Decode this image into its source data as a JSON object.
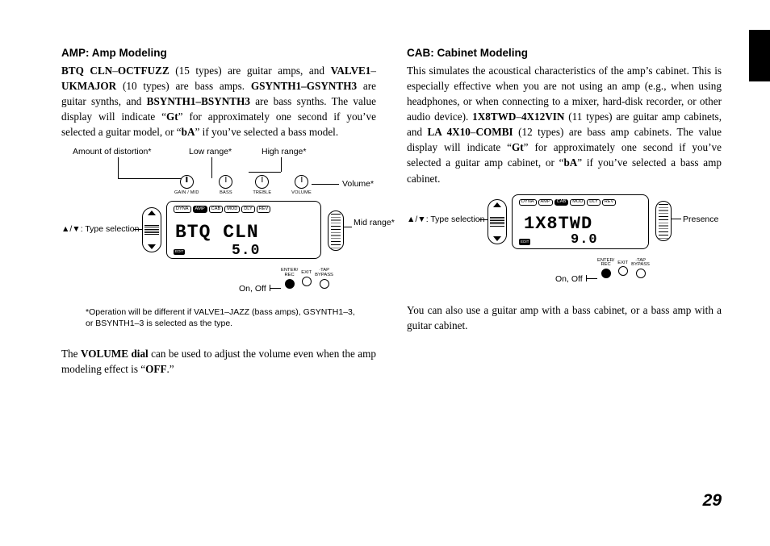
{
  "page_number": "29",
  "amp": {
    "heading": "AMP: Amp Modeling",
    "body_html": "<span class='bold'>BTQ CLN</span>–<span class='bold'>OCTFUZZ</span> (15 types) are guitar amps, and <span class='bold'>VALVE1</span>–<span class='bold'>UKMAJOR</span> (10 types) are bass amps. <span class='bold'>GSYNTH1–GSYNTH3</span> are guitar synths, and <span class='bold'>BSYNTH1–BSYNTH3</span> are bass synths. The value display will indicate “<span class='bold'>Gt</span>” for approximately one second if you’ve selected a guitar model, or “<span class='bold'>bA</span>” if you’ve selected a bass model.",
    "volume_note_html": "The <span class='bold'>VOLUME dial</span> can be used to adjust the volume even when the amp modeling effect is “<span class='bold'>OFF</span>.”",
    "footnote": "*Operation will be different if VALVE1–JAZZ (bass amps), GSYNTH1–3, or BSYNTH1–3 is selected as the type.",
    "diagram": {
      "labels": {
        "distortion": "Amount of distortion*",
        "low": "Low range*",
        "high": "High range*",
        "volume": "Volume*",
        "mid": "Mid range*",
        "type": "▲/▼: Type selection",
        "onoff": "On, Off"
      },
      "knobs": [
        "GAIN / MID",
        "BASS",
        "TREBLE",
        "VOLUME"
      ],
      "tabs": [
        "DYNA",
        "AMP",
        "CAB",
        "MOD",
        "DLY",
        "REV"
      ],
      "tab_selected": "AMP",
      "lcd_main": "BTQ  CLN",
      "lcd_value": "5.0",
      "buttons": {
        "rec": "ENTER/\nREC",
        "exit": "EXIT",
        "tap": "·TAP\nBYPASS"
      },
      "edit": "EDIT"
    }
  },
  "cab": {
    "heading": "CAB: Cabinet Modeling",
    "body_html": "This simulates the acoustical characteristics of the amp’s cabinet. This is especially effective when you are not using an amp (e.g., when using headphones, or when connecting to a mixer, hard-disk recorder, or other audio device). <span class='bold'>1X8TWD</span>–<span class='bold'>4X12VIN</span> (11 types) are guitar amp cabinets, and <span class='bold'>LA 4X10</span>–<span class='bold'>COMBI</span> (12 types) are bass amp cabinets. The value display will indicate “<span class='bold'>Gt</span>” for approximately one second if you’ve selected a guitar amp cabinet, or “<span class='bold'>bA</span>” if you’ve selected a bass amp cabinet.",
    "tail_para": "You can also use a guitar amp with a bass cabinet, or a bass amp with a guitar cabinet.",
    "diagram": {
      "labels": {
        "type": "▲/▼: Type selection",
        "presence": "Presence",
        "onoff": "On, Off"
      },
      "tabs": [
        "DYNA",
        "AMP",
        "CAB",
        "MOD",
        "DLY",
        "REV"
      ],
      "tab_selected": "CAB",
      "lcd_main": "1X8TWD",
      "lcd_value": "9.0",
      "buttons": {
        "rec": "ENTER/\nREC",
        "exit": "EXIT",
        "tap": "·TAP\nBYPASS"
      },
      "edit": "EDIT"
    }
  }
}
